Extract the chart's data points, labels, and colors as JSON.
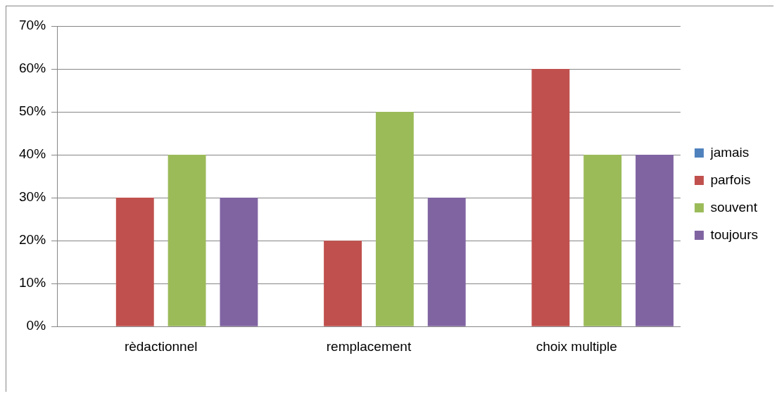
{
  "chart_data": {
    "type": "bar",
    "categories": [
      "rèdactionnel",
      "remplacement",
      "choix multiple"
    ],
    "series": [
      {
        "name": "jamais",
        "color": "#4f81bd",
        "values": [
          0,
          0,
          0
        ]
      },
      {
        "name": "parfois",
        "color": "#c0504d",
        "values": [
          30,
          20,
          60
        ]
      },
      {
        "name": "souvent",
        "color": "#9bbb59",
        "values": [
          40,
          50,
          40
        ]
      },
      {
        "name": "toujours",
        "color": "#8064a2",
        "values": [
          30,
          30,
          40
        ]
      }
    ],
    "ylim": [
      0,
      70
    ],
    "yticks": [
      {
        "value": 0,
        "label": "0%"
      },
      {
        "value": 10,
        "label": "10%"
      },
      {
        "value": 20,
        "label": "20%"
      },
      {
        "value": 30,
        "label": "30%"
      },
      {
        "value": 40,
        "label": "40%"
      },
      {
        "value": 50,
        "label": "50%"
      },
      {
        "value": 60,
        "label": "60%"
      },
      {
        "value": 70,
        "label": "70%"
      }
    ],
    "grid": "y",
    "legend": "right"
  }
}
